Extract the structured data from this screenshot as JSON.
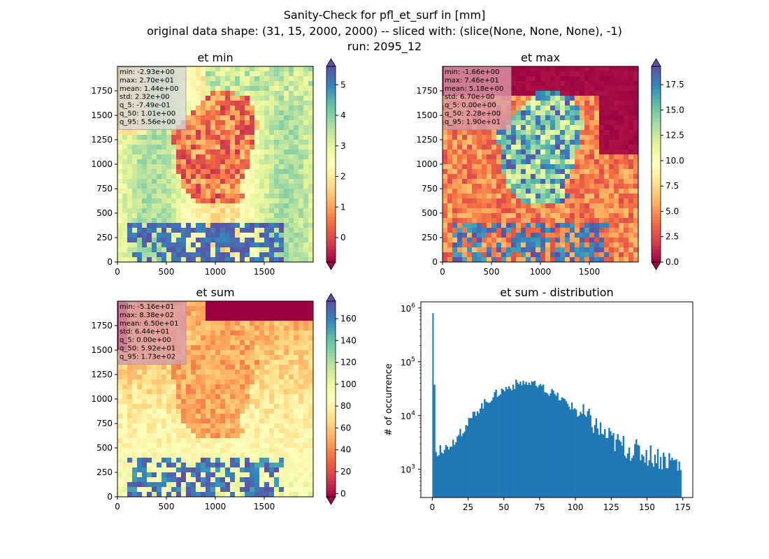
{
  "figure": {
    "title_lines": [
      "Sanity-Check for pfl_et_surf in [mm]",
      "original data shape: (31, 15, 2000, 2000) -- sliced with: (slice(None, None, None), -1)",
      "run: 2095_12"
    ]
  },
  "colormap": {
    "name": "Spectral",
    "stops": [
      "#9e0142",
      "#d53e4f",
      "#f46d43",
      "#fdae61",
      "#fee08b",
      "#ffffbf",
      "#e6f598",
      "#abdda4",
      "#66c2a5",
      "#3288bd",
      "#5e4fa2"
    ]
  },
  "chart_data": [
    {
      "type": "heatmap",
      "title": "et min",
      "xlim": [
        0,
        2000
      ],
      "ylim": [
        0,
        2000
      ],
      "xticks": [
        0,
        500,
        1000,
        1500
      ],
      "yticks": [
        0,
        250,
        500,
        750,
        1000,
        1250,
        1500,
        1750
      ],
      "colorbar": {
        "min": -0.8,
        "max": 5.6,
        "ticks": [
          0,
          1,
          2,
          3,
          4,
          5
        ],
        "extend": "both"
      },
      "stats": [
        "min: -2.93e+00",
        "max: 2.70e+01",
        "mean: 1.44e+00",
        "std: 2.32e+00",
        "q_5: -7.49e-01",
        "q_50: 1.01e+00",
        "q_95: 5.56e+00"
      ],
      "stats_box_color": "#d9d9d9"
    },
    {
      "type": "heatmap",
      "title": "et max",
      "xlim": [
        0,
        2000
      ],
      "ylim": [
        0,
        2000
      ],
      "xticks": [
        0,
        500,
        1000,
        1500
      ],
      "yticks": [
        0,
        250,
        500,
        750,
        1000,
        1250,
        1500,
        1750
      ],
      "colorbar": {
        "min": 0,
        "max": 19.3,
        "ticks": [
          0.0,
          2.5,
          5.0,
          7.5,
          10.0,
          12.5,
          15.0,
          17.5
        ],
        "extend": "both"
      },
      "stats": [
        "min: -1.66e+00",
        "max: 7.46e+01",
        "mean: 5.18e+00",
        "std: 6.70e+00",
        "q_5: 0.00e+00",
        "q_50: 2.28e+00",
        "q_95: 1.90e+01"
      ],
      "stats_box_color": "#d99aa8"
    },
    {
      "type": "heatmap",
      "title": "et sum",
      "xlim": [
        0,
        2000
      ],
      "ylim": [
        0,
        2000
      ],
      "xticks": [
        0,
        500,
        1000,
        1500
      ],
      "yticks": [
        0,
        250,
        500,
        750,
        1000,
        1250,
        1500,
        1750
      ],
      "colorbar": {
        "min": -3,
        "max": 176,
        "ticks": [
          0,
          20,
          40,
          60,
          80,
          100,
          120,
          140,
          160
        ],
        "extend": "both"
      },
      "stats": [
        "min: -5.16e+01",
        "max: 8.38e+02",
        "mean: 6.50e+01",
        "std: 6.44e+01",
        "q_5: 0.00e+00",
        "q_50: 5.92e+01",
        "q_95: 1.73e+02"
      ],
      "stats_box_color": "#d99aa8"
    },
    {
      "type": "bar",
      "title": "et sum - distribution",
      "xlabel": "",
      "ylabel": "# of occurrence",
      "yscale": "log",
      "xlim": [
        -8,
        182
      ],
      "ylim": [
        300,
        1300000
      ],
      "xticks": [
        0,
        25,
        50,
        75,
        100,
        125,
        150,
        175
      ],
      "yticks": [
        {
          "value": 1000,
          "label": "10^3"
        },
        {
          "value": 10000,
          "label": "10^4"
        },
        {
          "value": 100000,
          "label": "10^5"
        },
        {
          "value": 1000000,
          "label": "10^6"
        }
      ],
      "bar_color": "#1f77b4",
      "bin_width": 1,
      "bins_x": [
        0,
        2,
        5,
        10,
        15,
        20,
        25,
        30,
        35,
        40,
        45,
        50,
        55,
        60,
        62,
        65,
        70,
        75,
        80,
        85,
        90,
        95,
        100,
        105,
        110,
        115,
        120,
        125,
        130,
        135,
        140,
        145,
        150,
        155,
        160,
        165,
        170,
        173
      ],
      "bins_y": [
        800000,
        2000,
        2300,
        2600,
        3500,
        5000,
        7500,
        12000,
        16000,
        21000,
        26000,
        31000,
        36000,
        40000,
        42000,
        40000,
        37000,
        33000,
        28000,
        24000,
        20000,
        16000,
        13000,
        10000,
        8000,
        6000,
        4500,
        3500,
        3000,
        2600,
        2300,
        2100,
        1900,
        1800,
        1600,
        1500,
        1400,
        1000
      ]
    }
  ]
}
